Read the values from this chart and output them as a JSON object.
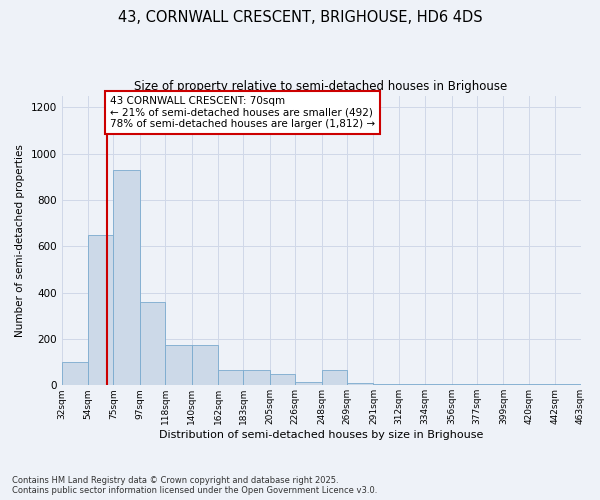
{
  "title1": "43, CORNWALL CRESCENT, BRIGHOUSE, HD6 4DS",
  "title2": "Size of property relative to semi-detached houses in Brighouse",
  "xlabel": "Distribution of semi-detached houses by size in Brighouse",
  "ylabel": "Number of semi-detached properties",
  "bar_edges": [
    32,
    54,
    75,
    97,
    118,
    140,
    162,
    183,
    205,
    226,
    248,
    269,
    291,
    312,
    334,
    356,
    377,
    399,
    420,
    442,
    463
  ],
  "bar_heights": [
    100,
    650,
    930,
    360,
    175,
    175,
    65,
    65,
    50,
    15,
    65,
    10,
    5,
    5,
    5,
    5,
    5,
    5,
    5,
    5
  ],
  "bar_color": "#ccd9e8",
  "bar_edgecolor": "#7aaace",
  "vline_x": 70,
  "vline_color": "#cc0000",
  "annotation_text": "43 CORNWALL CRESCENT: 70sqm\n← 21% of semi-detached houses are smaller (492)\n78% of semi-detached houses are larger (1,812) →",
  "annotation_box_edgecolor": "#cc0000",
  "annotation_box_facecolor": "white",
  "ylim": [
    0,
    1250
  ],
  "yticks": [
    0,
    200,
    400,
    600,
    800,
    1000,
    1200
  ],
  "footnote": "Contains HM Land Registry data © Crown copyright and database right 2025.\nContains public sector information licensed under the Open Government Licence v3.0.",
  "bg_color": "#eef2f8",
  "plot_bg_color": "#eef2f8",
  "grid_color": "#d0d8e8"
}
